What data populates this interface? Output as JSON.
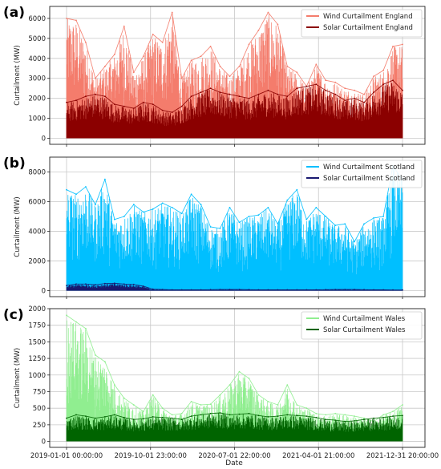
{
  "figure": {
    "x_label": "Date",
    "x_tick_labels": [
      "2019-01-01 00:00:00",
      "2019-10-01 23:00:00",
      "2020-07-01 22:00:00",
      "2021-04-01 21:00:00",
      "2021-12-31 20:00:00"
    ]
  },
  "chart_data": [
    {
      "type": "area",
      "panel_label": "(a)",
      "ylabel": "Curtailment (MW)",
      "xlabel": "",
      "ylim": [
        -300,
        6600
      ],
      "y_ticks": [
        0,
        1000,
        2000,
        3000,
        4000,
        5000,
        6000
      ],
      "x_range": [
        "2019-01-01 00:00:00",
        "2021-12-31 20:00:00"
      ],
      "grid": true,
      "legend_position": "top-right",
      "x": [
        "2019-01",
        "2019-02",
        "2019-03",
        "2019-04",
        "2019-05",
        "2019-06",
        "2019-07",
        "2019-08",
        "2019-09",
        "2019-10",
        "2019-11",
        "2019-12",
        "2020-01",
        "2020-02",
        "2020-03",
        "2020-04",
        "2020-05",
        "2020-06",
        "2020-07",
        "2020-08",
        "2020-09",
        "2020-10",
        "2020-11",
        "2020-12",
        "2021-01",
        "2021-02",
        "2021-03",
        "2021-04",
        "2021-05",
        "2021-06",
        "2021-07",
        "2021-08",
        "2021-09",
        "2021-10",
        "2021-11",
        "2021-12"
      ],
      "series": [
        {
          "name": "Wind Curtailment England",
          "color": "#f47c6c",
          "values": [
            6000,
            5900,
            4800,
            3000,
            3600,
            4200,
            5600,
            3300,
            4100,
            5200,
            4800,
            6300,
            3000,
            3900,
            4100,
            4600,
            3600,
            3100,
            3600,
            4700,
            5400,
            6300,
            5700,
            3600,
            3300,
            2600,
            3700,
            2900,
            2800,
            2500,
            2400,
            2200,
            3100,
            3400,
            4600,
            4700
          ]
        },
        {
          "name": "Solar Curtailment England",
          "color": "#8b0000",
          "values": [
            1800,
            1900,
            2100,
            2200,
            2100,
            1700,
            1600,
            1500,
            1800,
            1700,
            1400,
            1300,
            1600,
            2100,
            2300,
            2500,
            2300,
            2200,
            2100,
            2000,
            2200,
            2400,
            2200,
            2100,
            2500,
            2600,
            2700,
            2400,
            2200,
            1900,
            2000,
            1800,
            2300,
            2700,
            2900,
            2400
          ]
        }
      ]
    },
    {
      "type": "area",
      "panel_label": "(b)",
      "ylabel": "Curtailment (MW)",
      "xlabel": "",
      "ylim": [
        -400,
        9000
      ],
      "y_ticks": [
        0,
        2000,
        4000,
        6000,
        8000
      ],
      "x_range": [
        "2019-01-01 00:00:00",
        "2021-12-31 20:00:00"
      ],
      "grid": true,
      "legend_position": "top-right",
      "x": [
        "2019-01",
        "2019-02",
        "2019-03",
        "2019-04",
        "2019-05",
        "2019-06",
        "2019-07",
        "2019-08",
        "2019-09",
        "2019-10",
        "2019-11",
        "2019-12",
        "2020-01",
        "2020-02",
        "2020-03",
        "2020-04",
        "2020-05",
        "2020-06",
        "2020-07",
        "2020-08",
        "2020-09",
        "2020-10",
        "2020-11",
        "2020-12",
        "2021-01",
        "2021-02",
        "2021-03",
        "2021-04",
        "2021-05",
        "2021-06",
        "2021-07",
        "2021-08",
        "2021-09",
        "2021-10",
        "2021-11",
        "2021-12"
      ],
      "series": [
        {
          "name": "Wind Curtailment Scotland",
          "color": "#00bfff",
          "values": [
            6800,
            6500,
            7000,
            5800,
            7500,
            4800,
            5000,
            5800,
            5300,
            5500,
            5900,
            5600,
            5200,
            6500,
            5800,
            4300,
            4200,
            5600,
            4600,
            5000,
            5100,
            5600,
            4500,
            6100,
            6800,
            4800,
            5600,
            5000,
            4400,
            4500,
            3300,
            4500,
            4900,
            5000,
            8400,
            7500
          ]
        },
        {
          "name": "Solar Curtailment Scotland",
          "color": "#191970",
          "values": [
            350,
            450,
            450,
            400,
            480,
            500,
            450,
            420,
            300,
            100,
            80,
            60,
            60,
            60,
            60,
            70,
            80,
            80,
            80,
            70,
            60,
            60,
            60,
            60,
            60,
            60,
            60,
            70,
            80,
            80,
            80,
            70,
            60,
            60,
            50,
            50
          ]
        }
      ]
    },
    {
      "type": "area",
      "panel_label": "(c)",
      "ylabel": "Curtailment (MW)",
      "xlabel": "Date",
      "ylim": [
        -90,
        2000
      ],
      "y_ticks": [
        0,
        250,
        500,
        750,
        1000,
        1250,
        1500,
        1750,
        2000
      ],
      "x_range": [
        "2019-01-01 00:00:00",
        "2021-12-31 20:00:00"
      ],
      "grid": true,
      "legend_position": "top-right",
      "x": [
        "2019-01",
        "2019-02",
        "2019-03",
        "2019-04",
        "2019-05",
        "2019-06",
        "2019-07",
        "2019-08",
        "2019-09",
        "2019-10",
        "2019-11",
        "2019-12",
        "2020-01",
        "2020-02",
        "2020-03",
        "2020-04",
        "2020-05",
        "2020-06",
        "2020-07",
        "2020-08",
        "2020-09",
        "2020-10",
        "2020-11",
        "2020-12",
        "2021-01",
        "2021-02",
        "2021-03",
        "2021-04",
        "2021-05",
        "2021-06",
        "2021-07",
        "2021-08",
        "2021-09",
        "2021-10",
        "2021-11",
        "2021-12"
      ],
      "series": [
        {
          "name": "Wind Curtailment Wales",
          "color": "#90ee90",
          "values": [
            1900,
            1800,
            1700,
            1300,
            1200,
            850,
            650,
            550,
            450,
            700,
            500,
            400,
            420,
            600,
            550,
            560,
            700,
            850,
            1050,
            950,
            700,
            600,
            550,
            850,
            550,
            500,
            420,
            400,
            420,
            400,
            380,
            350,
            300,
            400,
            450,
            550
          ]
        },
        {
          "name": "Solar Curtailment Wales",
          "color": "#006400",
          "values": [
            350,
            400,
            380,
            350,
            370,
            400,
            360,
            330,
            340,
            370,
            360,
            350,
            330,
            380,
            400,
            420,
            430,
            400,
            410,
            420,
            390,
            370,
            380,
            400,
            390,
            380,
            360,
            330,
            320,
            300,
            310,
            330,
            350,
            360,
            380,
            390
          ]
        }
      ]
    }
  ]
}
